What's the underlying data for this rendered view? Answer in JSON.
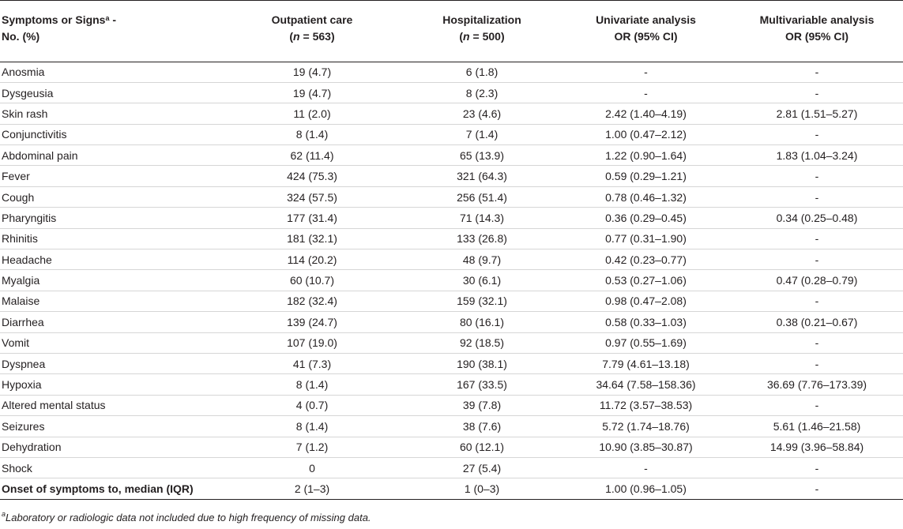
{
  "table": {
    "header": {
      "col1_line1": "Symptoms or Signs",
      "col1_sup": "a",
      "col1_suffix": " -",
      "col1_line2": "No. (%)",
      "col2_line1": "Outpatient care",
      "col2_n_label": "n",
      "col2_n_value": " = 563",
      "col3_line1": "Hospitalization",
      "col3_n_label": "n",
      "col3_n_value": " = 500",
      "col4_line1": "Univariate analysis",
      "col4_line2": "OR (95% CI)",
      "col5_line1": "Multivariable analysis",
      "col5_line2": "OR (95% CI)"
    },
    "rows": [
      {
        "label": "Anosmia",
        "outpatient": "19 (4.7)",
        "hospital": "6 (1.8)",
        "univariate": "-",
        "multivariable": "-"
      },
      {
        "label": "Dysgeusia",
        "outpatient": "19 (4.7)",
        "hospital": "8 (2.3)",
        "univariate": "-",
        "multivariable": "-"
      },
      {
        "label": "Skin rash",
        "outpatient": "11 (2.0)",
        "hospital": "23 (4.6)",
        "univariate": "2.42 (1.40–4.19)",
        "multivariable": "2.81 (1.51–5.27)"
      },
      {
        "label": "Conjunctivitis",
        "outpatient": "8 (1.4)",
        "hospital": "7 (1.4)",
        "univariate": "1.00 (0.47–2.12)",
        "multivariable": "-"
      },
      {
        "label": "Abdominal pain",
        "outpatient": "62 (11.4)",
        "hospital": "65 (13.9)",
        "univariate": "1.22 (0.90–1.64)",
        "multivariable": "1.83 (1.04–3.24)"
      },
      {
        "label": "Fever",
        "outpatient": "424 (75.3)",
        "hospital": "321 (64.3)",
        "univariate": "0.59 (0.29–1.21)",
        "multivariable": "-"
      },
      {
        "label": "Cough",
        "outpatient": "324 (57.5)",
        "hospital": "256 (51.4)",
        "univariate": "0.78 (0.46–1.32)",
        "multivariable": "-"
      },
      {
        "label": "Pharyngitis",
        "outpatient": "177 (31.4)",
        "hospital": "71 (14.3)",
        "univariate": "0.36 (0.29–0.45)",
        "multivariable": "0.34 (0.25–0.48)"
      },
      {
        "label": "Rhinitis",
        "outpatient": "181 (32.1)",
        "hospital": "133 (26.8)",
        "univariate": "0.77 (0.31–1.90)",
        "multivariable": "-"
      },
      {
        "label": "Headache",
        "outpatient": "114 (20.2)",
        "hospital": "48 (9.7)",
        "univariate": "0.42 (0.23–0.77)",
        "multivariable": "-"
      },
      {
        "label": "Myalgia",
        "outpatient": "60 (10.7)",
        "hospital": "30 (6.1)",
        "univariate": "0.53 (0.27–1.06)",
        "multivariable": "0.47 (0.28–0.79)"
      },
      {
        "label": "Malaise",
        "outpatient": "182 (32.4)",
        "hospital": "159 (32.1)",
        "univariate": "0.98 (0.47–2.08)",
        "multivariable": "-"
      },
      {
        "label": "Diarrhea",
        "outpatient": "139 (24.7)",
        "hospital": "80 (16.1)",
        "univariate": "0.58 (0.33–1.03)",
        "multivariable": "0.38 (0.21–0.67)"
      },
      {
        "label": "Vomit",
        "outpatient": "107 (19.0)",
        "hospital": "92 (18.5)",
        "univariate": "0.97 (0.55–1.69)",
        "multivariable": "-"
      },
      {
        "label": "Dyspnea",
        "outpatient": "41 (7.3)",
        "hospital": "190 (38.1)",
        "univariate": "7.79 (4.61–13.18)",
        "multivariable": "-"
      },
      {
        "label": "Hypoxia",
        "outpatient": "8 (1.4)",
        "hospital": "167 (33.5)",
        "univariate": "34.64 (7.58–158.36)",
        "multivariable": "36.69 (7.76–173.39)"
      },
      {
        "label": "Altered mental status",
        "outpatient": "4 (0.7)",
        "hospital": "39 (7.8)",
        "univariate": "11.72 (3.57–38.53)",
        "multivariable": "-"
      },
      {
        "label": "Seizures",
        "outpatient": "8 (1.4)",
        "hospital": "38 (7.6)",
        "univariate": "5.72 (1.74–18.76)",
        "multivariable": "5.61 (1.46–21.58)"
      },
      {
        "label": "Dehydration",
        "outpatient": "7 (1.2)",
        "hospital": "60 (12.1)",
        "univariate": "10.90 (3.85–30.87)",
        "multivariable": "14.99 (3.96–58.84)"
      },
      {
        "label": "Shock",
        "outpatient": "0",
        "hospital": "27 (5.4)",
        "univariate": "-",
        "multivariable": "-"
      },
      {
        "label": "Onset of symptoms to, median (IQR)",
        "outpatient": "2 (1–3)",
        "hospital": "1 (0–3)",
        "univariate": "1.00 (0.96–1.05)",
        "multivariable": "-",
        "bold": true
      }
    ]
  },
  "footnote": {
    "marker": "a",
    "text": "Laboratory or radiologic data not included due to high frequency of missing data."
  }
}
